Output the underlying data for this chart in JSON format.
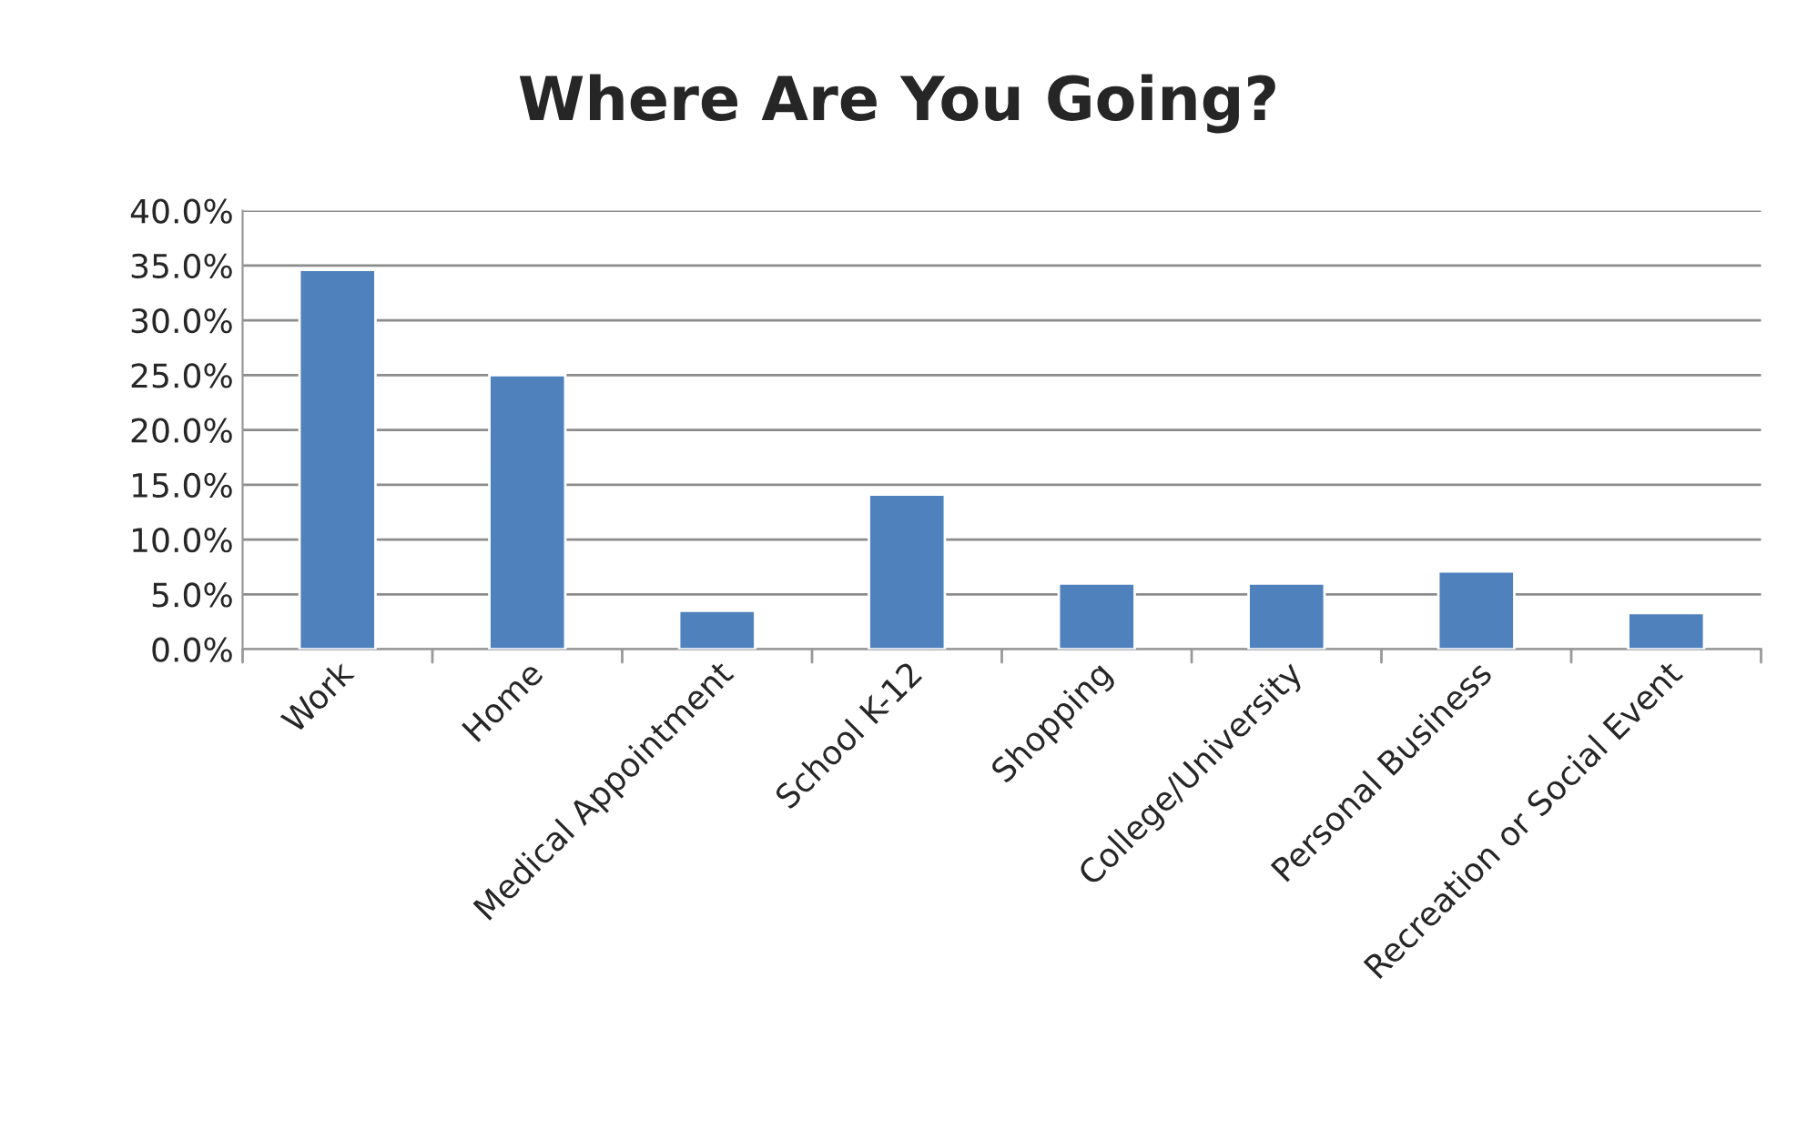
{
  "chart_data": {
    "type": "bar",
    "title": "Where Are You Going?",
    "categories": [
      "Work",
      "Home",
      "Medical Appointment",
      "School K-12",
      "Shopping",
      "College/University",
      "Personal Business",
      "Recreation or Social Event"
    ],
    "values": [
      34.6,
      25.0,
      3.5,
      14.1,
      6.0,
      6.0,
      7.1,
      3.3
    ],
    "color": "#4f81bd",
    "ylim": [
      0,
      40
    ],
    "yticks": [
      {
        "value": 0,
        "label": "0.0%"
      },
      {
        "value": 5,
        "label": "5.0%"
      },
      {
        "value": 10,
        "label": "10.0%"
      },
      {
        "value": 15,
        "label": "15.0%"
      },
      {
        "value": 20,
        "label": "20.0%"
      },
      {
        "value": 25,
        "label": "25.0%"
      },
      {
        "value": 30,
        "label": "30.0%"
      },
      {
        "value": 35,
        "label": "35.0%"
      },
      {
        "value": 40,
        "label": "40.0%"
      }
    ],
    "grid": "y"
  }
}
